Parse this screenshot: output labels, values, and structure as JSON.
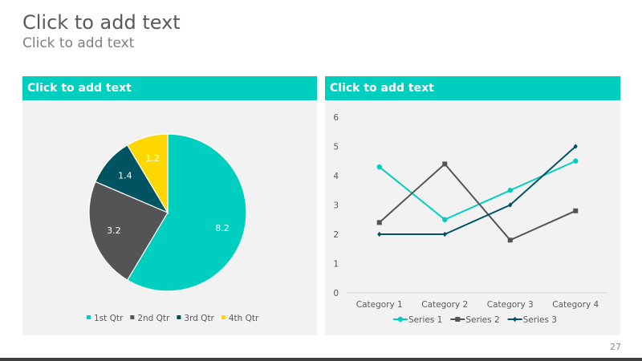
{
  "slide": {
    "title": "Click to add text",
    "subtitle": "Click to add text",
    "page_number": "27"
  },
  "panels": [
    {
      "header": "Click to add text"
    },
    {
      "header": "Click to add text"
    }
  ],
  "colors": {
    "accent": "#00cfbf",
    "dark_gray": "#545454",
    "dark_teal": "#005461",
    "yellow": "#ffd700",
    "panel_bg": "#f2f2f2"
  },
  "chart_data": [
    {
      "type": "pie",
      "categories": [
        "1st Qtr",
        "2nd Qtr",
        "3rd Qtr",
        "4th Qtr"
      ],
      "values": [
        8.2,
        3.2,
        1.4,
        1.2
      ],
      "data_labels": [
        "8.2",
        "3.2",
        "1.4",
        "1.2"
      ],
      "colors": [
        "#00cfbf",
        "#545454",
        "#005461",
        "#ffd700"
      ],
      "legend": "bottom"
    },
    {
      "type": "line",
      "categories": [
        "Category 1",
        "Category 2",
        "Category 3",
        "Category 4"
      ],
      "series": [
        {
          "name": "Series 1",
          "values": [
            4.3,
            2.5,
            3.5,
            4.5
          ],
          "color": "#00cfbf",
          "marker": "circle"
        },
        {
          "name": "Series 2",
          "values": [
            2.4,
            4.4,
            1.8,
            2.8
          ],
          "color": "#545454",
          "marker": "square"
        },
        {
          "name": "Series 3",
          "values": [
            2,
            2,
            3,
            5
          ],
          "color": "#005461",
          "marker": "diamond"
        }
      ],
      "ylim": [
        0,
        6
      ],
      "yticks": [
        "0",
        "1",
        "2",
        "3",
        "4",
        "5",
        "6"
      ],
      "grid": false,
      "legend": "bottom"
    }
  ]
}
